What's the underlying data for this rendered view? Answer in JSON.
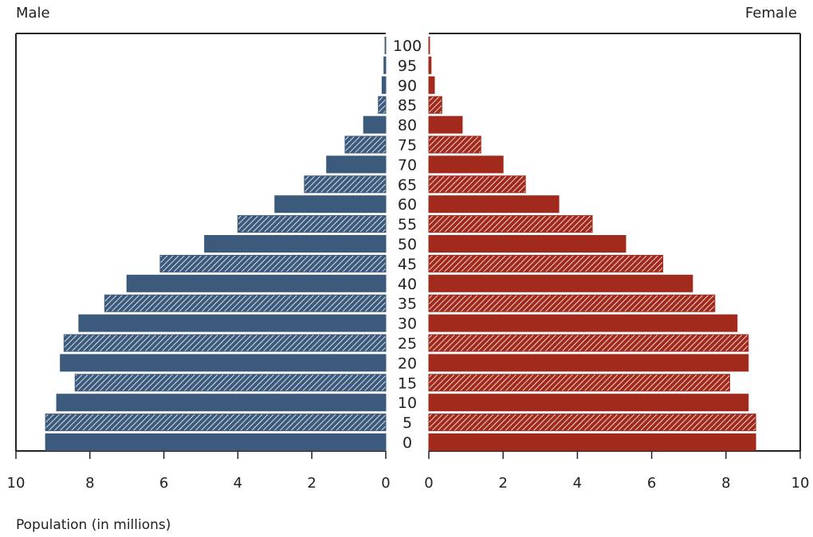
{
  "chart_data": {
    "type": "bar",
    "orientation": "horizontal",
    "layout": "population-pyramid",
    "categories": [
      "0",
      "5",
      "10",
      "15",
      "20",
      "25",
      "30",
      "35",
      "40",
      "45",
      "50",
      "55",
      "60",
      "65",
      "70",
      "75",
      "80",
      "85",
      "90",
      "95",
      "100"
    ],
    "series": [
      {
        "name": "Male",
        "values": [
          9.2,
          9.2,
          8.9,
          8.4,
          8.8,
          8.7,
          8.3,
          7.6,
          7.0,
          6.1,
          4.9,
          4.0,
          3.0,
          2.2,
          1.6,
          1.1,
          0.6,
          0.2,
          0.1,
          0.05,
          0.02
        ]
      },
      {
        "name": "Female",
        "values": [
          8.8,
          8.8,
          8.6,
          8.1,
          8.6,
          8.6,
          8.3,
          7.7,
          7.1,
          6.3,
          5.3,
          4.4,
          3.5,
          2.6,
          2.0,
          1.4,
          0.9,
          0.35,
          0.15,
          0.06,
          0.02
        ]
      }
    ],
    "hatched_categories": [
      "5",
      "15",
      "25",
      "35",
      "45",
      "55",
      "65",
      "75",
      "85"
    ],
    "colors": {
      "male": "#3b5a7c",
      "female": "#a12a1c",
      "hatch": "#ffffff"
    },
    "x_ticks": [
      10,
      8,
      6,
      4,
      2,
      0
    ],
    "xlim": [
      0,
      10
    ],
    "xlabel": "Population (in millions)",
    "left_title": "Male",
    "right_title": "Female",
    "grid": false
  }
}
